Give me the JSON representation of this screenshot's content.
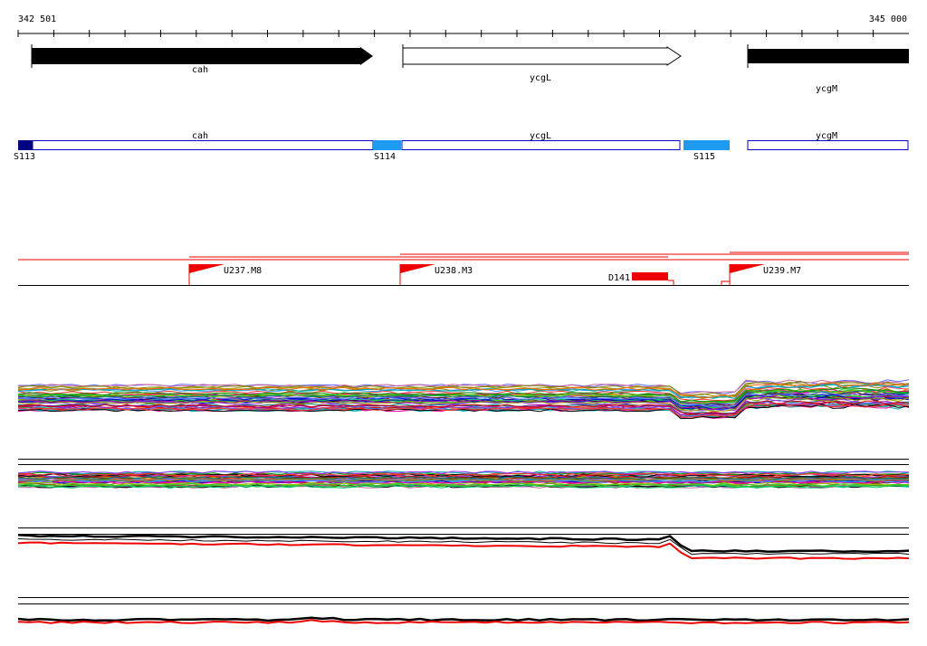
{
  "ruler": {
    "start_label": "342 501",
    "end_label": "345 000"
  },
  "genes": [
    {
      "name": "cah",
      "strand": "+",
      "filled": true
    },
    {
      "name": "ycgL",
      "strand": "+",
      "filled": false
    },
    {
      "name": "ycgM",
      "strand": "+",
      "filled": true
    }
  ],
  "segments": {
    "cds": [
      {
        "label": "cah"
      },
      {
        "label": "ycgL"
      },
      {
        "label": "ycgM"
      }
    ],
    "intergenic": [
      {
        "label": "S113"
      },
      {
        "label": "S114"
      },
      {
        "label": "S115"
      }
    ]
  },
  "promoters": [
    {
      "label": "U237.M8"
    },
    {
      "label": "U238.M3"
    },
    {
      "label": "U239.M7"
    }
  ],
  "deletion": {
    "label": "D141"
  },
  "colors": {
    "gene_fill": "#000000",
    "cds_outline": "#0000cc",
    "intergenic_dark": "#000080",
    "intergenic_light": "#1e9bf0",
    "promoter": "#ff0000",
    "deletion": "#ff0000",
    "baseline": "#000000"
  }
}
